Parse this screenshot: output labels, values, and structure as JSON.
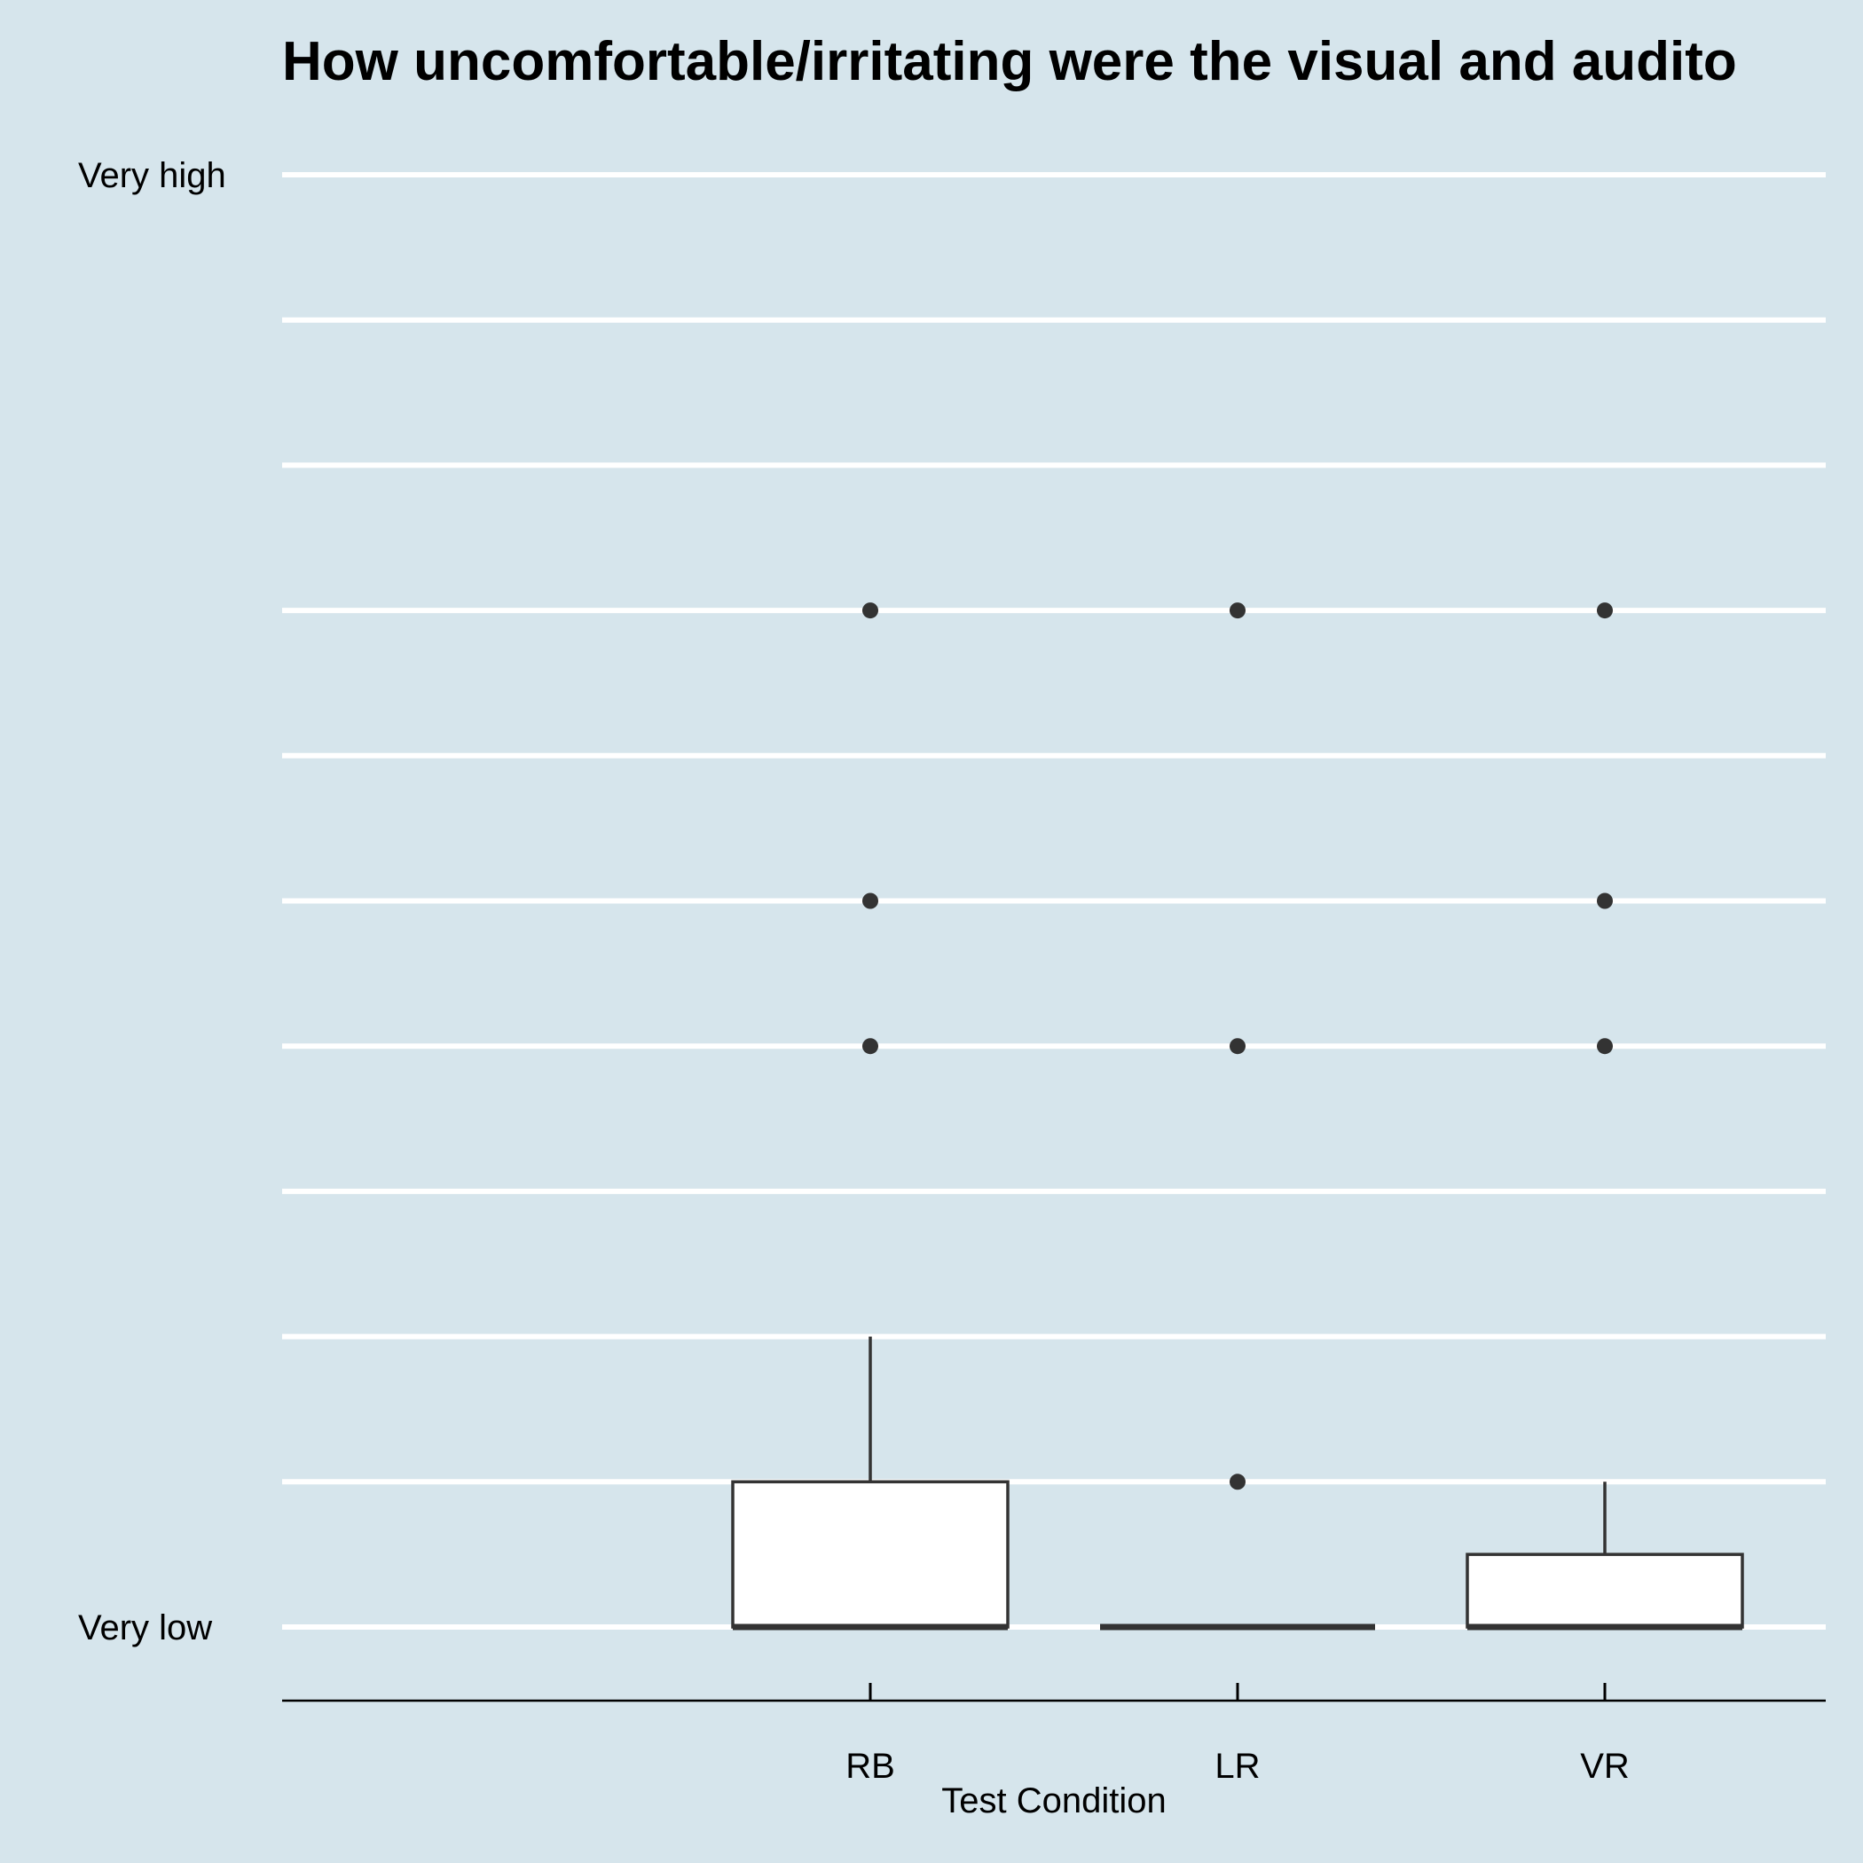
{
  "chart_data": {
    "type": "box",
    "title": "How uncomfortable/irritating were the visual and audito",
    "xlabel": "Test Condition",
    "ylabel": "",
    "y_scale_min": 1,
    "y_scale_max": 11,
    "y_tick_labels": [
      {
        "value": 11,
        "label": "Very high"
      },
      {
        "value": 1,
        "label": "Very low"
      }
    ],
    "gridlines": [
      1,
      2,
      3,
      4,
      5,
      6,
      7,
      8,
      9,
      10,
      11
    ],
    "grid": true,
    "categories": [
      "RB",
      "LR",
      "VR"
    ],
    "boxes": [
      {
        "category": "RB",
        "min": 1,
        "q1": 1,
        "median": 1,
        "q3": 2,
        "max": 3,
        "outliers": [
          5,
          6,
          8
        ]
      },
      {
        "category": "LR",
        "min": 1,
        "q1": 1,
        "median": 1,
        "q3": 1,
        "max": 1,
        "outliers": [
          2,
          5,
          8
        ]
      },
      {
        "category": "VR",
        "min": 1,
        "q1": 1,
        "median": 1,
        "q3": 1.5,
        "max": 2,
        "outliers": [
          5,
          6,
          8
        ]
      }
    ],
    "colors": {
      "background": "#d6e5ec",
      "gridline": "#ffffff",
      "box_fill": "#ffffff",
      "box_stroke": "#333333",
      "outlier": "#333333",
      "axis": "#000000",
      "text": "#000000"
    }
  }
}
